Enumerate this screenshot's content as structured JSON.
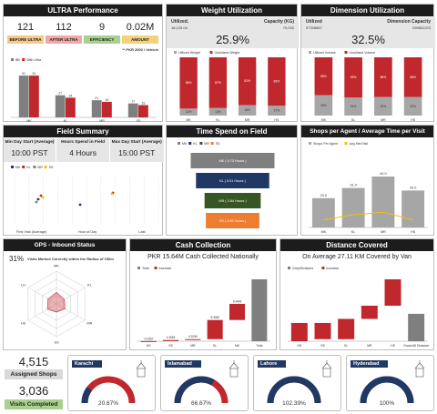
{
  "ultra": {
    "title": "ULTRA Performance",
    "kpis": [
      {
        "value": "121",
        "label": "BEFORE ULTRA",
        "color": "#f4c98a"
      },
      {
        "value": "112",
        "label": "AFTER ULTRA",
        "color": "#f3a7a7"
      },
      {
        "value": "9",
        "label": "EFFICIENCY",
        "color": "#a9d18e"
      },
      {
        "value": "0.02M",
        "label": "AMOUNT",
        "color": "#f2d27a"
      }
    ],
    "note": "** PKR 2000 / Vehicle",
    "legend": [
      "BB",
      "With Ultra"
    ],
    "chart_data": {
      "type": "bar",
      "categories": [
        "MK",
        "KL",
        "MR",
        "SS"
      ],
      "series": [
        {
          "name": "BB",
          "values": [
            51,
            27,
            21,
            17
          ],
          "color": "#7f7f7f"
        },
        {
          "name": "With Ultra",
          "values": [
            51,
            24,
            19,
            15
          ],
          "color": "#c0282d"
        }
      ],
      "data_labels": [
        [
          "51",
          "27",
          "21",
          "17"
        ],
        [
          "51",
          "24",
          "19",
          "15"
        ]
      ],
      "ylim": [
        0,
        60
      ]
    }
  },
  "weight": {
    "title": "Weight Utilization",
    "utilized_label": "Utilized.",
    "utilized_value": "18,125.04",
    "capacity_label": "Capacity (KG)",
    "capacity_value": "70,030",
    "percent": "25.9%",
    "legend": [
      "Utilized Weight",
      "Unutilized Weight"
    ],
    "chart_data": {
      "type": "bar",
      "categories": [
        "MK",
        "KL",
        "MR",
        "HS"
      ],
      "series": [
        {
          "name": "Utilized Weight",
          "values": [
            12,
            13,
            18,
            17
          ],
          "color": "#a6a6a6"
        },
        {
          "name": "Unutilized Weight",
          "values": [
            88,
            87,
            82,
            83
          ],
          "color": "#c0282d"
        }
      ],
      "data_labels": [
        [
          "12%",
          "13%",
          "18%",
          "17%"
        ],
        [
          "88%",
          "87%",
          "82%",
          "83%"
        ]
      ]
    }
  },
  "dimension": {
    "title": "Dimension Utilization",
    "utilized_label": "Utilized",
    "utilized_value": "97328887",
    "capacity_label": "Dimension Capacity",
    "capacity_value": "299802223",
    "percent": "32.5%",
    "legend": [
      "Utilized Volume",
      "Unutilized Volume"
    ],
    "chart_data": {
      "type": "bar",
      "categories": [
        "MK",
        "KL",
        "MR",
        "HS"
      ],
      "series": [
        {
          "name": "Utilized Volume",
          "values": [
            35,
            31,
            32,
            32
          ],
          "color": "#a6a6a6"
        },
        {
          "name": "Unutilized Volume",
          "values": [
            65,
            69,
            68,
            68
          ],
          "color": "#c0282d"
        }
      ],
      "data_labels": [
        [
          "35%",
          "31%",
          "32%",
          "32%"
        ],
        [
          "65%",
          "69%",
          "68%",
          "68%"
        ]
      ]
    }
  },
  "field": {
    "title": "Field Summary",
    "kpis": [
      {
        "label": "Min Day Start (Average)",
        "value": "10:00 PST"
      },
      {
        "label": "Hours Spend in Field",
        "value": "4 Hours"
      },
      {
        "label": "Max Day Start (Average)",
        "value": "15:00 PST"
      }
    ],
    "legend": [
      "MK",
      "KL",
      "MR",
      "SS"
    ],
    "colors": [
      "#1f3864",
      "#c0282d",
      "#7f7f7f",
      "#f2c200"
    ],
    "axis_labels": [
      "First Visit (Average)",
      "Hour of Day",
      "Last"
    ]
  },
  "time_field": {
    "title": "Time Spend on Field",
    "legend": [
      "MK",
      "KL",
      "MR",
      "SS"
    ],
    "bars": [
      {
        "label": "MK ( 5.73 Hours )",
        "value": 5.73,
        "color": "#7f7f7f"
      },
      {
        "label": "KL ( 5.01 Hours )",
        "value": 5.01,
        "color": "#1f3864"
      },
      {
        "label": "MR ( 3.84 Hours )",
        "value": 3.84,
        "color": "#375623"
      },
      {
        "label": "SS ( 3.66 Hours )",
        "value": 3.66,
        "color": "#ed7d31"
      }
    ]
  },
  "shops_agent": {
    "title": "Shops per Agent / Average Time per Visit",
    "legend": [
      "Shops Per Agent",
      "Avg Min/Visit"
    ],
    "chart_data": {
      "type": "bar",
      "categories": [
        "MK",
        "KL",
        "MR",
        "HS"
      ],
      "series": [
        {
          "name": "Shops Per Agent",
          "values": [
            23.0,
            31.0,
            40.0,
            29.0
          ],
          "color": "#a6a6a6"
        },
        {
          "name": "Avg Min/Visit",
          "values": [
            6,
            10,
            12,
            6
          ],
          "color": "#f2c200"
        }
      ],
      "data_labels": [
        "23.0",
        "31.0",
        "40.0",
        "29.0"
      ],
      "ylim": [
        0,
        50
      ]
    }
  },
  "gps": {
    "title": "GPS - Inbound Status",
    "percent": "31%",
    "text": "Visits Marked Correctly within the Radius of 150m",
    "axes": [
      "MK",
      "KL",
      "MR",
      "SS",
      "HS",
      "LH"
    ]
  },
  "cash": {
    "title": "Cash Collection",
    "subtitle": "PKR 15.64M Cash Collected Nationally",
    "legend": [
      "Total",
      "Increase"
    ],
    "chart_data": {
      "type": "bar",
      "categories": [
        "HS",
        "SS",
        "MR",
        "KL",
        "MK",
        "Total"
      ],
      "values": [
        0.03,
        0.3,
        0.52,
        5.36,
        9.44,
        15.64
      ],
      "data_labels": [
        "0.03M",
        "0.30M",
        "0.52M",
        "5.36M",
        "9.44M",
        ""
      ]
    }
  },
  "distance": {
    "title": "Distance Covered",
    "subtitle": "On Average 27.11 KM Covered by Van",
    "legend": [
      "Grey/Divisions",
      "Increase"
    ],
    "chart_data": {
      "type": "bar",
      "categories": [
        "HS",
        "SS",
        "KL",
        "MR",
        "HS",
        "Grand All Distance"
      ],
      "values": [
        18,
        2,
        22,
        35,
        61,
        27
      ],
      "data_labels": [
        "",
        "",
        "",
        "",
        "",
        ""
      ]
    }
  },
  "shops_total": {
    "assigned_value": "4,515",
    "assigned_label": "Assigned Shops",
    "completed_value": "3,036",
    "completed_label": "Visits Completed"
  },
  "cities": [
    {
      "name": "Karachi",
      "percent": "20.67%",
      "fill": 0.2067
    },
    {
      "name": "Islamabad",
      "percent": "66.67%",
      "fill": 0.6667
    },
    {
      "name": "Lahore",
      "percent": "102.39%",
      "fill": 1.0
    },
    {
      "name": "Hyderabad",
      "percent": "100%",
      "fill": 1.0
    }
  ]
}
